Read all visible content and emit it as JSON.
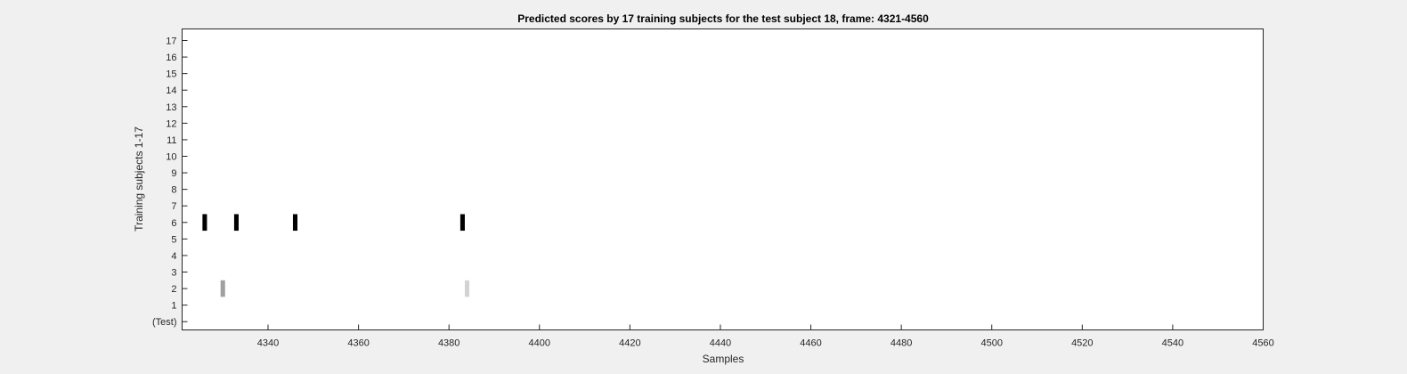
{
  "chart_data": {
    "type": "heatmap",
    "title": "Predicted scores by 17 training subjects for the test subject 18, frame: 4321-4560",
    "xlabel": "Samples",
    "ylabel": "Training subjects 1-17",
    "xlim": [
      4321,
      4560
    ],
    "x_ticks": [
      "4340",
      "4360",
      "4380",
      "4400",
      "4420",
      "4440",
      "4460",
      "4480",
      "4500",
      "4520",
      "4540",
      "4560"
    ],
    "y_tick_labels": [
      "(Test)",
      "1",
      "2",
      "3",
      "4",
      "5",
      "6",
      "7",
      "8",
      "9",
      "10",
      "11",
      "12",
      "13",
      "14",
      "15",
      "16",
      "17"
    ],
    "grid": false,
    "background_color": "#ffffff",
    "marks": [
      {
        "row": "6",
        "x": 4326,
        "color": "#000000"
      },
      {
        "row": "6",
        "x": 4333,
        "color": "#000000"
      },
      {
        "row": "6",
        "x": 4346,
        "color": "#000000"
      },
      {
        "row": "6",
        "x": 4383,
        "color": "#000000"
      },
      {
        "row": "2",
        "x": 4330,
        "color": "#a0a0a0"
      },
      {
        "row": "2",
        "x": 4384,
        "color": "#d3d3d3"
      }
    ]
  }
}
